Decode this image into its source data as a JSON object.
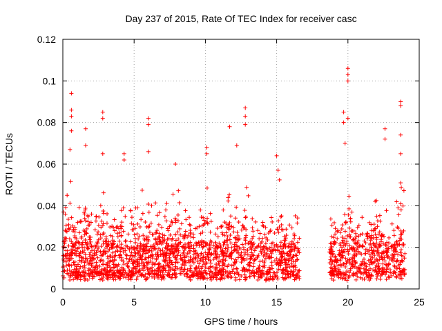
{
  "chart_data": {
    "type": "scatter",
    "title": "Day 237 of 2015, Rate Of TEC Index for receiver casc",
    "xlabel": "GPS time / hours",
    "ylabel": "ROTI / TECUs",
    "xlim": [
      0,
      25
    ],
    "ylim": [
      0,
      0.12
    ],
    "xticks": [
      0,
      5,
      10,
      15,
      20,
      25
    ],
    "xtick_labels": [
      "0",
      "5",
      "10",
      "15",
      "20",
      "25"
    ],
    "yticks": [
      0,
      0.02,
      0.04,
      0.06,
      0.08,
      0.1,
      0.12
    ],
    "ytick_labels": [
      "0",
      "0.02",
      "0.04",
      "0.06",
      "0.08",
      "0.1",
      "0.12"
    ],
    "grid": true,
    "marker": "+",
    "color": "#ff0000",
    "data_gaps_hours": [
      [
        16.6,
        18.7
      ]
    ],
    "series": [
      {
        "name": "ROTI",
        "notable_points": [
          {
            "x": 0.3,
            "y": 0.045
          },
          {
            "x": 0.5,
            "y": 0.067
          },
          {
            "x": 0.6,
            "y": 0.083
          },
          {
            "x": 0.6,
            "y": 0.086
          },
          {
            "x": 0.6,
            "y": 0.094
          },
          {
            "x": 0.6,
            "y": 0.076
          },
          {
            "x": 1.6,
            "y": 0.077
          },
          {
            "x": 1.6,
            "y": 0.069
          },
          {
            "x": 2.8,
            "y": 0.085
          },
          {
            "x": 2.8,
            "y": 0.082
          },
          {
            "x": 2.8,
            "y": 0.065
          },
          {
            "x": 4.3,
            "y": 0.065
          },
          {
            "x": 4.3,
            "y": 0.062
          },
          {
            "x": 6.0,
            "y": 0.082
          },
          {
            "x": 6.0,
            "y": 0.079
          },
          {
            "x": 6.0,
            "y": 0.066
          },
          {
            "x": 7.9,
            "y": 0.06
          },
          {
            "x": 10.1,
            "y": 0.068
          },
          {
            "x": 10.1,
            "y": 0.065
          },
          {
            "x": 11.7,
            "y": 0.078
          },
          {
            "x": 12.2,
            "y": 0.069
          },
          {
            "x": 12.8,
            "y": 0.087
          },
          {
            "x": 12.8,
            "y": 0.083
          },
          {
            "x": 12.8,
            "y": 0.079
          },
          {
            "x": 15.0,
            "y": 0.064
          },
          {
            "x": 15.1,
            "y": 0.057
          },
          {
            "x": 19.7,
            "y": 0.085
          },
          {
            "x": 19.7,
            "y": 0.08
          },
          {
            "x": 19.8,
            "y": 0.07
          },
          {
            "x": 20.0,
            "y": 0.1
          },
          {
            "x": 20.0,
            "y": 0.106
          },
          {
            "x": 20.0,
            "y": 0.103
          },
          {
            "x": 20.0,
            "y": 0.082
          },
          {
            "x": 22.6,
            "y": 0.077
          },
          {
            "x": 22.6,
            "y": 0.072
          },
          {
            "x": 23.7,
            "y": 0.09
          },
          {
            "x": 23.7,
            "y": 0.088
          },
          {
            "x": 23.7,
            "y": 0.074
          },
          {
            "x": 23.7,
            "y": 0.065
          },
          {
            "x": 23.7,
            "y": 0.051
          },
          {
            "x": 23.7,
            "y": 0.041
          },
          {
            "x": 23.7,
            "y": 0.026
          }
        ]
      }
    ]
  }
}
